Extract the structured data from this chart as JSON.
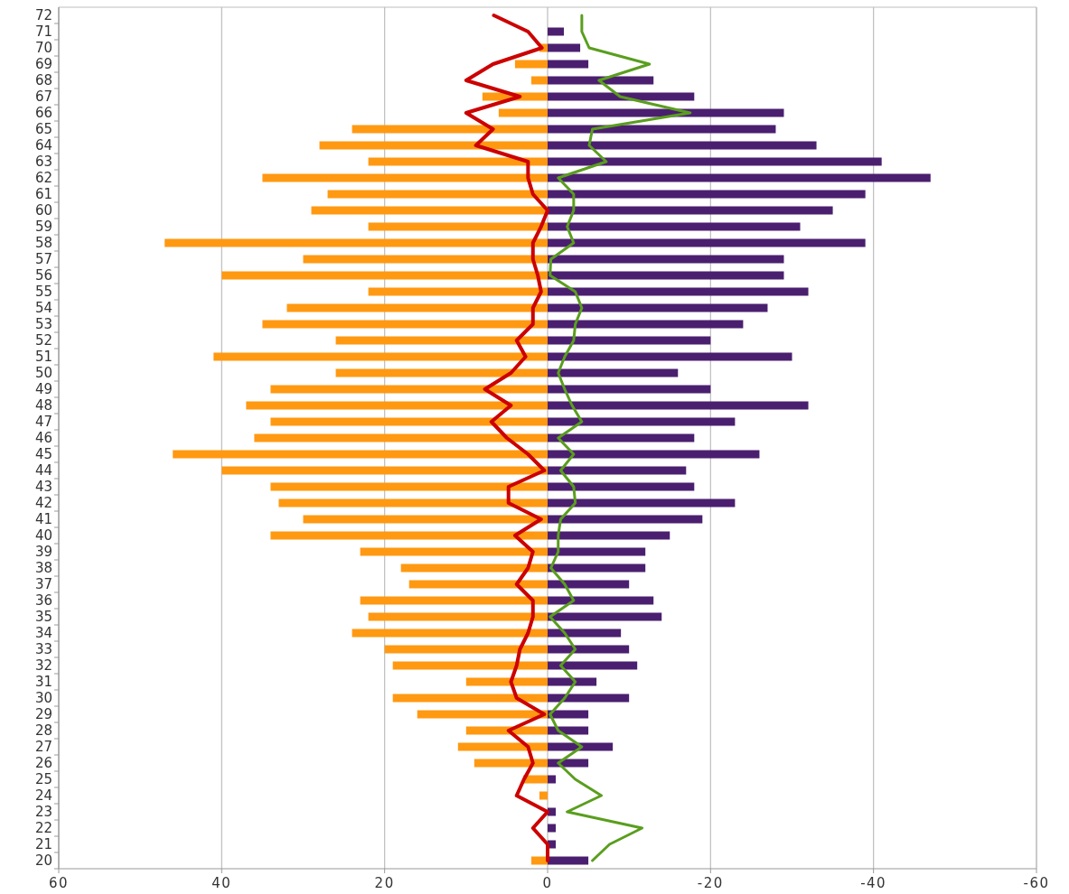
{
  "chart_data": {
    "type": "bar",
    "orientation": "horizontal",
    "stacked": true,
    "categories": [
      "72",
      "71",
      "70",
      "69",
      "68",
      "67",
      "66",
      "65",
      "64",
      "63",
      "62",
      "61",
      "60",
      "59",
      "58",
      "57",
      "56",
      "55",
      "54",
      "53",
      "52",
      "51",
      "50",
      "49",
      "48",
      "47",
      "46",
      "45",
      "44",
      "43",
      "42",
      "41",
      "40",
      "39",
      "38",
      "37",
      "36",
      "35",
      "34",
      "33",
      "32",
      "31",
      "30",
      "29",
      "28",
      "27",
      "26",
      "25",
      "24",
      "23",
      "22",
      "21",
      "20"
    ],
    "xlim": [
      60,
      -60
    ],
    "xticks": [
      60,
      40,
      20,
      0,
      -20,
      -40,
      -60
    ],
    "grid": "x",
    "series": [
      {
        "color": "#ff9912",
        "values": [
          null,
          null,
          1,
          4,
          2,
          8,
          6,
          24,
          28,
          22,
          35,
          27,
          29,
          22,
          47,
          30,
          40,
          22,
          32,
          35,
          26,
          41,
          26,
          34,
          37,
          34,
          36,
          46,
          40,
          34,
          33,
          30,
          34,
          23,
          18,
          17,
          23,
          22,
          24,
          20,
          19,
          10,
          19,
          16,
          10,
          11,
          9,
          3,
          1,
          null,
          null,
          null,
          2
        ]
      },
      {
        "color": "#4b1f6f",
        "values": [
          null,
          -2,
          -4,
          -5,
          -13,
          -18,
          -29,
          -28,
          -33,
          -41,
          -47,
          -39,
          -35,
          -31,
          -39,
          -29,
          -29,
          -32,
          -27,
          -24,
          -20,
          -30,
          -16,
          -20,
          -32,
          -23,
          -18,
          -26,
          -17,
          -18,
          -23,
          -19,
          -15,
          -12,
          -12,
          -10,
          -13,
          -14,
          -9,
          -10,
          -11,
          -6,
          -10,
          -5,
          -5,
          -8,
          -5,
          -1,
          null,
          -1,
          -1,
          -1,
          -5
        ]
      },
      {
        "type": "line",
        "color": "#cc0000",
        "values": [
          6.6,
          2.4,
          0.7,
          6.7,
          10,
          3.4,
          10,
          6.7,
          8.8,
          2.4,
          2.4,
          1.8,
          0,
          0.8,
          1.8,
          1.8,
          1.2,
          0.8,
          1.8,
          1.8,
          3.8,
          2.7,
          4.5,
          7.7,
          4.5,
          6.9,
          5,
          2.4,
          0.4,
          4.8,
          4.8,
          0.8,
          4,
          1.8,
          2.4,
          3.8,
          1.8,
          1.8,
          2.4,
          3.4,
          3.8,
          4.5,
          3.8,
          0.4,
          4.8,
          2.4,
          1.8,
          2.9,
          3.8,
          0,
          1.8,
          0,
          0
        ]
      },
      {
        "type": "line",
        "color": "#5a9e1e",
        "values": [
          -4.2,
          -4.2,
          -5.1,
          -12.5,
          -6.3,
          -8.9,
          -17.5,
          -5.5,
          -5.1,
          -7.2,
          -1.3,
          -3.2,
          -3.2,
          -2.4,
          -3.2,
          -0.4,
          -0.3,
          -3.4,
          -4.2,
          -3.4,
          -3.2,
          -2.1,
          -1.3,
          -2.1,
          -3,
          -4.2,
          -1.3,
          -3.2,
          -1.6,
          -3.2,
          -3.4,
          -1.6,
          -1.3,
          -1.3,
          -0.4,
          -2.1,
          -3.2,
          -0.3,
          -2.1,
          -3.4,
          -1.6,
          -3.4,
          -2.1,
          -0.3,
          -1.3,
          -4.2,
          -1.3,
          -3.4,
          -6.6,
          -2.4,
          -11.6,
          -7.6,
          -5.5
        ]
      }
    ]
  }
}
